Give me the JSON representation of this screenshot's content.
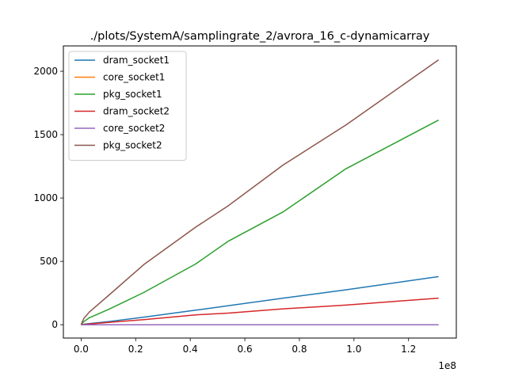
{
  "chart_data": {
    "type": "line",
    "title": "./plots/SystemA/samplingrate_2/avrora_16_c-dynamicarray",
    "xlabel": "",
    "ylabel": "",
    "x_offset_label": "1e8",
    "xlim": [
      -0.065,
      1.375
    ],
    "ylim": [
      -105,
      2200
    ],
    "x_ticks": [
      0.0,
      0.2,
      0.4,
      0.6,
      0.8,
      1.0,
      1.2
    ],
    "x_tick_labels": [
      "0.0",
      "0.2",
      "0.4",
      "0.6",
      "0.8",
      "1.0",
      "1.2"
    ],
    "y_ticks": [
      0,
      500,
      1000,
      1500,
      2000
    ],
    "y_tick_labels": [
      "0",
      "500",
      "1000",
      "1500",
      "2000"
    ],
    "grid": false,
    "legend_position": "upper-left",
    "series": [
      {
        "name": "dram_socket1",
        "color": "#1f77b4",
        "x": [
          0.0,
          0.01,
          0.03,
          0.1,
          0.23,
          0.42,
          0.54,
          0.74,
          0.97,
          1.31
        ],
        "y": [
          0,
          4,
          9,
          25,
          60,
          115,
          150,
          210,
          275,
          380
        ]
      },
      {
        "name": "core_socket1",
        "color": "#ff7f0e",
        "x": [
          0.0,
          0.23,
          0.54,
          0.97,
          1.31
        ],
        "y": [
          0,
          0,
          0,
          0,
          0
        ]
      },
      {
        "name": "pkg_socket1",
        "color": "#2ca02c",
        "x": [
          0.0,
          0.01,
          0.03,
          0.1,
          0.23,
          0.42,
          0.54,
          0.74,
          0.97,
          1.31
        ],
        "y": [
          0,
          25,
          55,
          120,
          255,
          480,
          660,
          890,
          1230,
          1615
        ]
      },
      {
        "name": "dram_socket2",
        "color": "#d62728",
        "x": [
          0.0,
          0.01,
          0.03,
          0.1,
          0.23,
          0.42,
          0.54,
          0.74,
          0.97,
          1.31
        ],
        "y": [
          0,
          3,
          6,
          18,
          40,
          78,
          92,
          125,
          155,
          210
        ]
      },
      {
        "name": "core_socket2",
        "color": "#9467bd",
        "x": [
          0.0,
          0.23,
          0.54,
          0.97,
          1.31
        ],
        "y": [
          0,
          0,
          0,
          0,
          0
        ]
      },
      {
        "name": "pkg_socket2",
        "color": "#8c564b",
        "x": [
          0.0,
          0.01,
          0.03,
          0.1,
          0.23,
          0.42,
          0.54,
          0.74,
          0.97,
          1.31
        ],
        "y": [
          0,
          50,
          100,
          230,
          475,
          770,
          940,
          1260,
          1575,
          2090
        ]
      }
    ]
  }
}
